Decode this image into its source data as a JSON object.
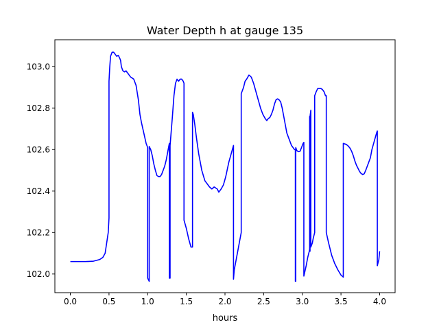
{
  "chart_data": {
    "type": "line",
    "title": "Water Depth h at gauge 135",
    "xlabel": "hours",
    "ylabel": "",
    "xlim": [
      -0.2,
      4.2
    ],
    "ylim": [
      101.91,
      103.13
    ],
    "xticks": [
      0.0,
      0.5,
      1.0,
      1.5,
      2.0,
      2.5,
      3.0,
      3.5,
      4.0
    ],
    "xtick_labels": [
      "0.0",
      "0.5",
      "1.0",
      "1.5",
      "2.0",
      "2.5",
      "3.0",
      "3.5",
      "4.0"
    ],
    "yticks": [
      102.0,
      102.2,
      102.4,
      102.6,
      102.8,
      103.0
    ],
    "ytick_labels": [
      "102.0",
      "102.2",
      "102.4",
      "102.6",
      "102.8",
      "103.0"
    ],
    "grid": false,
    "color": "#0000ff",
    "series": [
      {
        "x": [
          0.0,
          0.2,
          0.3,
          0.38,
          0.42,
          0.45,
          0.47,
          0.49,
          0.5,
          0.5,
          0.51,
          0.52,
          0.54,
          0.56,
          0.58,
          0.6,
          0.62,
          0.64,
          0.65,
          0.66,
          0.68,
          0.7,
          0.72,
          0.74,
          0.76,
          0.78,
          0.8,
          0.82,
          0.85,
          0.88,
          0.9,
          0.92,
          0.95,
          0.98,
          1.0,
          1.0,
          1.02,
          1.02,
          1.04,
          1.06,
          1.08,
          1.1,
          1.12,
          1.14,
          1.16,
          1.18,
          1.2,
          1.22,
          1.24,
          1.26,
          1.28,
          1.28,
          1.29,
          1.29,
          1.32,
          1.34,
          1.36,
          1.38,
          1.4,
          1.42,
          1.44,
          1.46,
          1.47,
          1.47,
          1.5,
          1.53,
          1.56,
          1.58,
          1.58,
          1.59,
          1.61,
          1.63,
          1.66,
          1.7,
          1.74,
          1.78,
          1.8,
          1.83,
          1.86,
          1.88,
          1.9,
          1.92,
          1.95,
          1.98,
          2.01,
          2.05,
          2.08,
          2.11,
          2.11,
          2.12,
          2.15,
          2.18,
          2.21,
          2.21,
          2.22,
          2.24,
          2.26,
          2.28,
          2.31,
          2.34,
          2.37,
          2.4,
          2.43,
          2.46,
          2.49,
          2.52,
          2.54,
          2.56,
          2.58,
          2.6,
          2.62,
          2.64,
          2.66,
          2.68,
          2.7,
          2.72,
          2.74,
          2.76,
          2.78,
          2.8,
          2.82,
          2.84,
          2.86,
          2.88,
          2.9,
          2.91,
          2.91,
          2.915,
          2.915,
          2.93,
          2.95,
          2.97,
          2.99,
          3.01,
          3.02,
          3.02,
          3.05,
          3.07,
          3.09,
          3.095,
          3.095,
          3.1,
          3.1,
          3.11,
          3.11,
          3.13,
          3.14,
          3.16,
          3.16,
          3.18,
          3.2,
          3.22,
          3.24,
          3.26,
          3.28,
          3.3,
          3.31,
          3.31,
          3.34,
          3.38,
          3.42,
          3.46,
          3.5,
          3.53,
          3.53,
          3.57,
          3.6,
          3.62,
          3.64,
          3.66,
          3.68,
          3.7,
          3.72,
          3.74,
          3.76,
          3.78,
          3.8,
          3.82,
          3.84,
          3.86,
          3.88,
          3.9,
          3.93,
          3.96,
          3.97,
          3.97,
          3.99,
          4.0
        ],
        "y": [
          102.06,
          102.06,
          102.062,
          102.07,
          102.08,
          102.1,
          102.15,
          102.2,
          102.27,
          102.93,
          103.0,
          103.05,
          103.07,
          103.07,
          103.06,
          103.05,
          103.055,
          103.04,
          103.03,
          103.0,
          102.98,
          102.975,
          102.98,
          102.97,
          102.96,
          102.95,
          102.945,
          102.94,
          102.91,
          102.84,
          102.77,
          102.73,
          102.68,
          102.63,
          102.61,
          101.98,
          101.965,
          102.615,
          102.6,
          102.57,
          102.53,
          102.5,
          102.475,
          102.47,
          102.47,
          102.48,
          102.5,
          102.52,
          102.55,
          102.59,
          102.63,
          101.98,
          101.98,
          102.62,
          102.76,
          102.86,
          102.92,
          102.94,
          102.93,
          102.94,
          102.94,
          102.93,
          102.92,
          102.26,
          102.22,
          102.17,
          102.13,
          102.13,
          102.78,
          102.77,
          102.72,
          102.66,
          102.58,
          102.5,
          102.45,
          102.43,
          102.42,
          102.41,
          102.42,
          102.415,
          102.41,
          102.395,
          102.41,
          102.43,
          102.47,
          102.54,
          102.58,
          102.62,
          101.975,
          102.02,
          102.08,
          102.14,
          102.2,
          102.87,
          102.88,
          102.9,
          102.93,
          102.94,
          102.96,
          102.95,
          102.92,
          102.88,
          102.84,
          102.8,
          102.77,
          102.75,
          102.74,
          102.75,
          102.755,
          102.77,
          102.79,
          102.82,
          102.84,
          102.845,
          102.84,
          102.83,
          102.8,
          102.76,
          102.72,
          102.68,
          102.66,
          102.64,
          102.62,
          102.61,
          102.6,
          102.6,
          101.965,
          101.965,
          102.61,
          102.595,
          102.59,
          102.592,
          102.61,
          102.63,
          102.635,
          101.99,
          102.04,
          102.08,
          102.11,
          102.12,
          102.76,
          102.11,
          102.76,
          102.79,
          102.13,
          102.15,
          102.17,
          102.2,
          102.86,
          102.88,
          102.895,
          102.895,
          102.895,
          102.89,
          102.88,
          102.86,
          102.86,
          102.2,
          102.15,
          102.09,
          102.05,
          102.02,
          101.995,
          101.985,
          102.63,
          102.625,
          102.615,
          102.605,
          102.59,
          102.57,
          102.545,
          102.525,
          102.51,
          102.495,
          102.485,
          102.48,
          102.483,
          102.5,
          102.52,
          102.54,
          102.56,
          102.6,
          102.64,
          102.68,
          102.69,
          102.04,
          102.07,
          102.11
        ]
      }
    ]
  }
}
